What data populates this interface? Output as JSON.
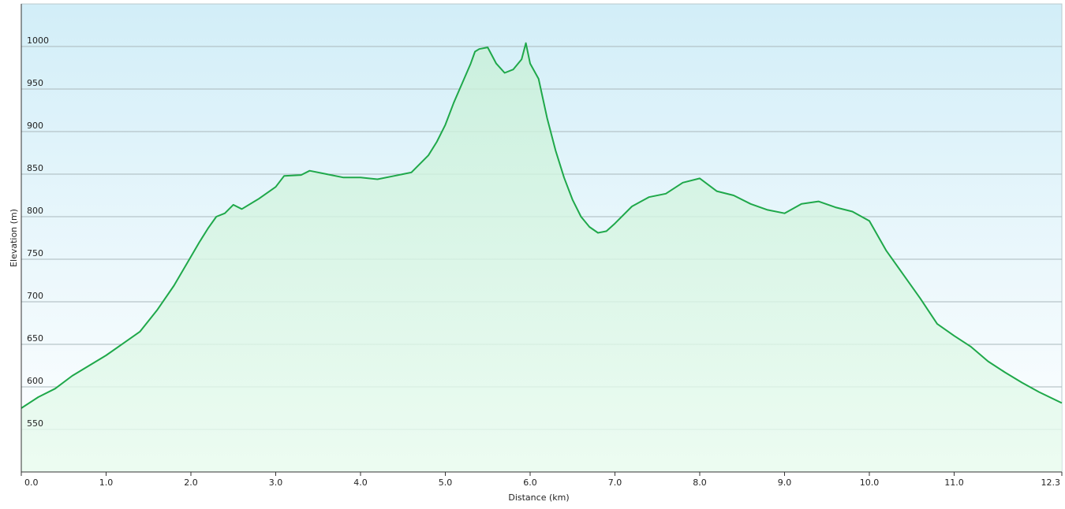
{
  "chart_data": {
    "type": "area",
    "x_label": "Distance  (km)",
    "y_label": "Elevation (m)",
    "x": [
      0,
      0.2,
      0.4,
      0.6,
      0.8,
      1.0,
      1.2,
      1.4,
      1.6,
      1.8,
      2.0,
      2.1,
      2.2,
      2.3,
      2.4,
      2.5,
      2.6,
      2.8,
      3.0,
      3.1,
      3.3,
      3.4,
      3.6,
      3.8,
      4.0,
      4.2,
      4.4,
      4.6,
      4.8,
      4.9,
      5.0,
      5.1,
      5.2,
      5.3,
      5.35,
      5.4,
      5.5,
      5.6,
      5.7,
      5.8,
      5.9,
      5.95,
      6.0,
      6.1,
      6.2,
      6.3,
      6.4,
      6.5,
      6.6,
      6.7,
      6.8,
      6.9,
      7.0,
      7.2,
      7.4,
      7.6,
      7.8,
      8.0,
      8.2,
      8.4,
      8.6,
      8.8,
      9.0,
      9.2,
      9.4,
      9.6,
      9.8,
      10.0,
      10.2,
      10.4,
      10.6,
      10.8,
      11.0,
      11.2,
      11.4,
      11.6,
      11.8,
      12.0,
      12.27
    ],
    "values": [
      575,
      588,
      598,
      613,
      625,
      637,
      651,
      665,
      690,
      719,
      753,
      770,
      786,
      800,
      804,
      814,
      809,
      821,
      835,
      848,
      849,
      854,
      850,
      846,
      846,
      844,
      848,
      852,
      872,
      888,
      908,
      934,
      957,
      980,
      994,
      997,
      999,
      980,
      969,
      973,
      985,
      1004,
      980,
      962,
      916,
      878,
      846,
      820,
      800,
      788,
      781,
      783,
      792,
      812,
      823,
      827,
      840,
      845,
      830,
      825,
      815,
      808,
      804,
      815,
      818,
      811,
      806,
      795,
      760,
      732,
      704,
      674,
      660,
      647,
      630,
      617,
      605,
      594,
      581
    ],
    "color": "#1fa84a",
    "xlim": [
      0,
      12.27
    ],
    "xticks": [
      {
        "value": 0,
        "label": "0.0"
      },
      {
        "value": 1,
        "label": "1.0"
      },
      {
        "value": 2,
        "label": "2.0"
      },
      {
        "value": 3,
        "label": "3.0"
      },
      {
        "value": 4,
        "label": "4.0"
      },
      {
        "value": 5,
        "label": "5.0"
      },
      {
        "value": 6,
        "label": "6.0"
      },
      {
        "value": 7,
        "label": "7.0"
      },
      {
        "value": 8,
        "label": "8.0"
      },
      {
        "value": 9,
        "label": "9.0"
      },
      {
        "value": 10,
        "label": "10.0"
      },
      {
        "value": 11,
        "label": "11.0"
      },
      {
        "value": 12.27,
        "label": "12.3"
      }
    ],
    "ylim": [
      500,
      1050
    ],
    "yticks": [
      550,
      600,
      650,
      700,
      750,
      800,
      850,
      900,
      950,
      1000
    ],
    "grid": true
  }
}
